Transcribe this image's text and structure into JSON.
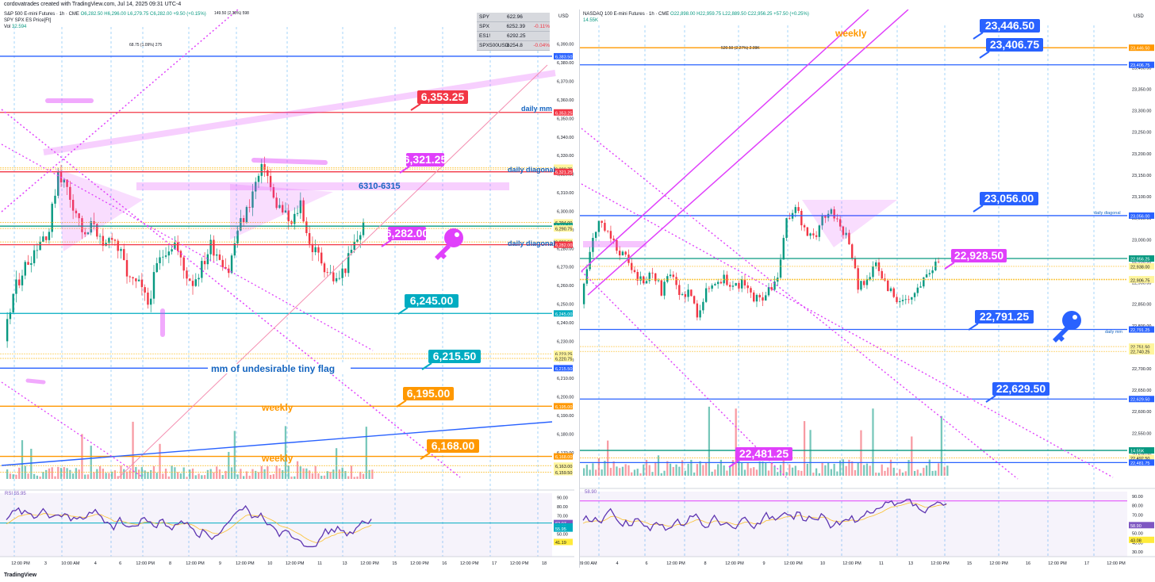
{
  "credit": "cordovatrades created with TradingView.com, Jul 14, 2025 09:31 UTC-4",
  "footer": "TradingView",
  "left": {
    "header": {
      "line1": "S&P 500 E-mini Futures · 1h · CME",
      "ohlc": "O6,282.50 H6,296.00 L6,279.75 C6,282.00 +9.50 (+0.15%)",
      "line2": "SPY SPX ES Price[Ft]",
      "vol_label": "Vol",
      "vol_value": "32.594",
      "currency": "USD",
      "rsi_label": "RSI 55.95"
    },
    "quotes": [
      {
        "sym": "SPY",
        "val": "622.96",
        "chg": ""
      },
      {
        "sym": "SPX",
        "val": "6252.39",
        "chg": "-0.11%"
      },
      {
        "sym": "ES1!",
        "val": "6292.25",
        "chg": ""
      },
      {
        "sym": "SPX500USD",
        "val": "6254.8",
        "chg": "-0.04%"
      }
    ],
    "small_notes": [
      "149.50 (2.38%) 598",
      "68.75 (1.09%) 275"
    ],
    "annotations": {
      "daily_mm": "daily mm",
      "daily_diagonal_1": "daily diagonal",
      "daily_diagonal_2": "daily diagonal",
      "range": "6310-6315",
      "mm_flag": "mm of undesirable tiny flag",
      "weekly_1": "weekly",
      "weekly_2": "weekly"
    },
    "bubbles": [
      {
        "label": "6,353.25",
        "price": 6353.25,
        "color": "#f23645"
      },
      {
        "label": "6,321.25",
        "price": 6321.25,
        "color": "#e040fb"
      },
      {
        "label": "6,282.00",
        "price": 6282.0,
        "color": "#e040fb"
      },
      {
        "label": "6,245.00",
        "price": 6245.0,
        "color": "#00acc1"
      },
      {
        "label": "6,215.50",
        "price": 6215.5,
        "color": "#00acc1"
      },
      {
        "label": "6,195.00",
        "price": 6195.0,
        "color": "#ff9800"
      },
      {
        "label": "6,168.00",
        "price": 6168.0,
        "color": "#ff9800"
      }
    ],
    "axis_ticks": [
      "6,390.00",
      "6,380.00",
      "6,370.00",
      "6,360.00",
      "6,350.00",
      "6,340.00",
      "6,330.00",
      "6,320.00",
      "6,310.00",
      "6,300.00",
      "6,290.00",
      "6,280.00",
      "6,270.00",
      "6,260.00",
      "6,250.00",
      "6,240.00",
      "6,230.00",
      "6,220.00",
      "6,210.00",
      "6,200.00",
      "6,190.00",
      "6,180.00",
      "6,170.00"
    ],
    "price_tags": [
      {
        "label": "6,383.50",
        "price": 6383.5,
        "color": "#2962ff"
      },
      {
        "label": "6,353.25",
        "price": 6353.25,
        "color": "#f23645"
      },
      {
        "label": "6,323.50",
        "price": 6323.5,
        "color": "#fff59d"
      },
      {
        "label": "6,322.75",
        "price": 6322.75,
        "color": "#fff59d"
      },
      {
        "label": "6,321.25",
        "price": 6321.25,
        "color": "#f23645"
      },
      {
        "label": "6,294.00",
        "price": 6294.0,
        "color": "#fff59d"
      },
      {
        "label": "6,292.00",
        "price": 6292.0,
        "color": "#089981"
      },
      {
        "label": "6,290.75",
        "price": 6290.75,
        "color": "#fff59d"
      },
      {
        "label": "6,283.50",
        "price": 6283.5,
        "color": "#fff59d"
      },
      {
        "label": "6,282.00",
        "price": 6282.0,
        "color": "#f23645"
      },
      {
        "label": "6,245.00",
        "price": 6245.0,
        "color": "#00acc1"
      },
      {
        "label": "6,223.25",
        "price": 6223.25,
        "color": "#fff59d"
      },
      {
        "label": "6,220.75",
        "price": 6220.75,
        "color": "#fff59d"
      },
      {
        "label": "6,215.50",
        "price": 6215.5,
        "color": "#2962ff"
      },
      {
        "label": "6,195.00",
        "price": 6195.0,
        "color": "#ff9800"
      },
      {
        "label": "6,168.00",
        "price": 6168.0,
        "color": "#ff9800"
      },
      {
        "label": "6,163.00",
        "price": 6163.0,
        "color": "#fff59d"
      },
      {
        "label": "6,159.50",
        "price": 6159.5,
        "color": "#fff59d"
      }
    ],
    "rsi_ticks": [
      "90.00",
      "80.00",
      "70.00",
      "60.00",
      "50.00"
    ],
    "rsi_tags": [
      "62.07",
      "58.33",
      "55.95",
      "41.19"
    ],
    "time_labels": [
      "12:00 PM",
      "3",
      "10:00 AM",
      "4",
      "6",
      "12:00 PM",
      "8",
      "12:00 PM",
      "9",
      "12:00 PM",
      "10",
      "12:00 PM",
      "11",
      "13",
      "12:00 PM",
      "15",
      "12:00 PM",
      "16",
      "12:00 PM",
      "17",
      "12:00 PM",
      "18"
    ]
  },
  "right": {
    "header": {
      "line1": "NASDAQ 100 E-mini Futures · 1h · CME",
      "ohlc": "O22,898.00 H22,959.75 L22,889.50 C22,956.25 +57.50 (+0.25%)",
      "vol_value": "14.55K",
      "currency": "USD",
      "rsi_label": "58.90"
    },
    "small_notes": [
      "520.50 (2.27%) 2.09K"
    ],
    "annotations": {
      "weekly": "weekly",
      "daily_diagonal": "daily diagonal",
      "daily_mm": "daily mm"
    },
    "bubbles": [
      {
        "label": "23,446.50",
        "price": 23446.5,
        "color": "#2962ff"
      },
      {
        "label": "23,406.75",
        "price": 23406.75,
        "color": "#2962ff"
      },
      {
        "label": "23,056.00",
        "price": 23056.0,
        "color": "#2962ff"
      },
      {
        "label": "22,928.50",
        "price": 22928.5,
        "color": "#e040fb"
      },
      {
        "label": "22,791.25",
        "price": 22791.25,
        "color": "#2962ff"
      },
      {
        "label": "22,629.50",
        "price": 22629.5,
        "color": "#2962ff"
      },
      {
        "label": "22,481.25",
        "price": 22481.25,
        "color": "#e040fb"
      }
    ],
    "axis_ticks": [
      "23,400.00",
      "23,350.00",
      "23,300.00",
      "23,250.00",
      "23,200.00",
      "23,150.00",
      "23,100.00",
      "23,050.00",
      "23,000.00",
      "22,950.00",
      "22,900.00",
      "22,850.00",
      "22,800.00",
      "22,750.00",
      "22,700.00",
      "22,650.00",
      "22,600.00",
      "22,550.00",
      "22,500.00"
    ],
    "price_tags": [
      {
        "label": "23,446.50",
        "price": 23446.5,
        "color": "#ff9800"
      },
      {
        "label": "23,406.75",
        "price": 23406.75,
        "color": "#2962ff"
      },
      {
        "label": "23,056.00",
        "price": 23056.0,
        "color": "#2962ff"
      },
      {
        "label": "22,956.25",
        "price": 22956.25,
        "color": "#089981"
      },
      {
        "label": "22,938.00",
        "price": 22938.0,
        "color": "#fff59d"
      },
      {
        "label": "22,908.25",
        "price": 22908.25,
        "color": "#fff59d"
      },
      {
        "label": "22,906.75",
        "price": 22906.75,
        "color": "#fff59d"
      },
      {
        "label": "22,791.25",
        "price": 22791.25,
        "color": "#2962ff"
      },
      {
        "label": "22,751.50",
        "price": 22751.5,
        "color": "#fff59d"
      },
      {
        "label": "22,740.25",
        "price": 22740.25,
        "color": "#fff59d"
      },
      {
        "label": "22,629.50",
        "price": 22629.5,
        "color": "#2962ff"
      },
      {
        "label": "14.55K",
        "price": 22510.0,
        "color": "#089981"
      },
      {
        "label": "22,492.50",
        "price": 22492.5,
        "color": "#fff59d"
      },
      {
        "label": "22,481.75",
        "price": 22481.75,
        "color": "#2962ff"
      }
    ],
    "rsi_ticks": [
      "90.00",
      "80.00",
      "70.00",
      "60.00",
      "50.00",
      "40.00",
      "30.00"
    ],
    "rsi_tags": [
      "58.90",
      "43.08"
    ],
    "time_labels": [
      "09:00 AM",
      "4",
      "6",
      "12:00 PM",
      "8",
      "12:00 PM",
      "9",
      "12:00 PM",
      "10",
      "12:00 PM",
      "11",
      "13",
      "12:00 PM",
      "15",
      "12:00 PM",
      "16",
      "12:00 PM",
      "17",
      "12:00 PM"
    ]
  },
  "chart_data": [
    {
      "type": "candlestick",
      "title": "S&P 500 E-mini Futures · 1h · CME",
      "ylim": [
        6155,
        6395
      ],
      "levels": [
        6383.5,
        6353.25,
        6321.25,
        6294.0,
        6282.0,
        6245.0,
        6223.25,
        6220.75,
        6215.5,
        6195.0,
        6168.0,
        6163.0,
        6159.5
      ],
      "close_path": [
        6230,
        6255,
        6268,
        6276,
        6285,
        6290,
        6322,
        6312,
        6300,
        6285,
        6295,
        6278,
        6288,
        6276,
        6262,
        6260,
        6250,
        6270,
        6280,
        6283,
        6268,
        6262,
        6270,
        6282,
        6276,
        6268,
        6290,
        6300,
        6315,
        6325,
        6306,
        6300,
        6292,
        6305,
        6282,
        6276,
        6268,
        6262,
        6270,
        6282,
        6292
      ]
    },
    {
      "type": "candlestick",
      "title": "NASDAQ 100 E-mini Futures · 1h · CME",
      "ylim": [
        22440,
        23480
      ],
      "levels": [
        23446.5,
        23406.75,
        23056.0,
        22928.5,
        22791.25,
        22629.5,
        22481.25
      ],
      "close_path": [
        22850,
        22980,
        23040,
        23010,
        22980,
        22960,
        22920,
        22900,
        22930,
        22880,
        22920,
        22870,
        22880,
        22830,
        22880,
        22900,
        22910,
        22890,
        22900,
        22870,
        22860,
        22880,
        22910,
        23040,
        23080,
        23020,
        23000,
        23050,
        23070,
        23030,
        23000,
        22890,
        22910,
        22940,
        22900,
        22870,
        22850,
        22860,
        22900,
        22930,
        22956
      ]
    }
  ]
}
